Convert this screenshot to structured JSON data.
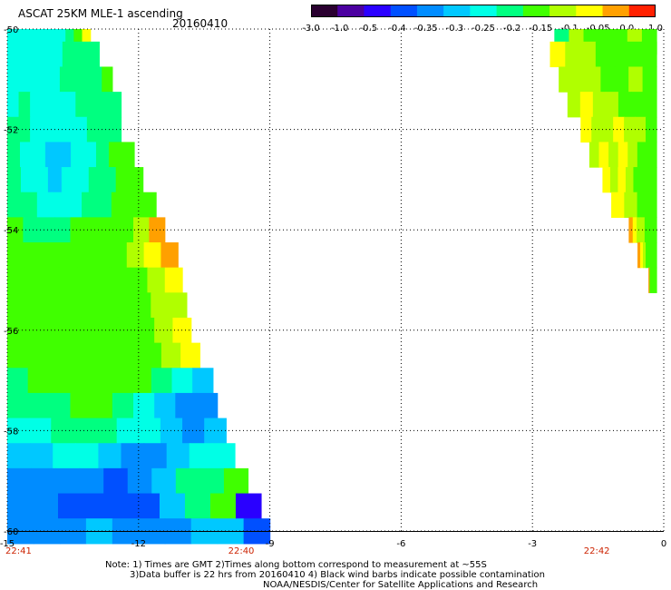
{
  "header": {
    "title": "ASCAT 25KM MLE-1 ascending",
    "date": "20160410"
  },
  "colorbar": {
    "labels": [
      "-3.0",
      "-1.0",
      "-0.5",
      "-0.4",
      "-0.35",
      "-0.3",
      "-0.25",
      "-0.2",
      "-0.15",
      "-0.1",
      "-0.05",
      "0.0",
      "1.0"
    ],
    "colors": [
      "#2a0030",
      "#4b00a0",
      "#2a00ff",
      "#0050ff",
      "#008cff",
      "#00c8ff",
      "#00ffe6",
      "#00ff80",
      "#40ff00",
      "#b0ff00",
      "#ffff00",
      "#ffa000",
      "#ff2000"
    ]
  },
  "axes": {
    "x_ticks": [
      "-15",
      "-12",
      "-9",
      "-6",
      "-3",
      "0"
    ],
    "y_ticks": [
      "-50",
      "-52",
      "-54",
      "-56",
      "-58",
      "-60"
    ],
    "times": [
      "22:41",
      "22:40",
      "22:42"
    ]
  },
  "notes": {
    "line1": "Note: 1) Times are GMT 2)Times along bottom correspond to measurement at ~55S",
    "line2": "3)Data buffer is 22 hrs from 20160410 4) Black wind barbs indicate possible contamination",
    "line3": "NOAA/NESDIS/Center for Satellite Applications and Research"
  },
  "chart_data": {
    "type": "heatmap",
    "title": "ASCAT 25KM MLE-1 ascending",
    "subtitle": "20160410",
    "xlim": [
      -15,
      0
    ],
    "ylim": [
      -60,
      -50
    ],
    "x_ticks": [
      -15,
      -12,
      -9,
      -6,
      -3,
      0
    ],
    "y_ticks": [
      -50,
      -52,
      -54,
      -56,
      -58,
      -60
    ],
    "grid": true,
    "colorbar_levels": [
      -3.0,
      -1.0,
      -0.5,
      -0.4,
      -0.35,
      -0.3,
      -0.25,
      -0.2,
      -0.15,
      -0.1,
      -0.05,
      0.0,
      1.0
    ],
    "swaths": [
      {
        "name": "left",
        "lat_rows": [
          -50.0,
          -50.5,
          -51.0,
          -51.5,
          -52.0,
          -52.5,
          -53.0,
          -53.5,
          -54.0,
          -54.5,
          -55.0,
          -55.5,
          -56.0,
          -56.5,
          -57.0,
          -57.5,
          -58.0,
          -58.5,
          -59.0,
          -59.5,
          -60.0
        ],
        "east_edge_lon": [
          -13.1,
          -12.9,
          -12.6,
          -12.4,
          -12.4,
          -12.1,
          -11.9,
          -11.6,
          -11.4,
          -11.1,
          -11.0,
          -10.9,
          -10.8,
          -10.6,
          -10.3,
          -10.2,
          -10.0,
          -9.8,
          -9.5,
          -9.2,
          -9.0
        ],
        "values": [
          [
            -0.25,
            -0.25,
            -0.25,
            -0.25,
            -0.25,
            -0.25,
            -0.25,
            -0.2,
            -0.15,
            -0.05
          ],
          [
            -0.25,
            -0.25,
            -0.25,
            -0.25,
            -0.25,
            -0.25,
            -0.2,
            -0.2,
            -0.2,
            -0.2
          ],
          [
            -0.25,
            -0.25,
            -0.25,
            -0.25,
            -0.25,
            -0.2,
            -0.2,
            -0.2,
            -0.2,
            -0.15
          ],
          [
            -0.25,
            -0.2,
            -0.25,
            -0.25,
            -0.25,
            -0.25,
            -0.2,
            -0.2,
            -0.2,
            -0.2
          ],
          [
            -0.2,
            -0.2,
            -0.25,
            -0.25,
            -0.25,
            -0.25,
            -0.25,
            -0.2,
            -0.2,
            -0.2
          ],
          [
            -0.2,
            -0.25,
            -0.25,
            -0.3,
            -0.3,
            -0.25,
            -0.25,
            -0.2,
            -0.15,
            -0.15
          ],
          [
            -0.2,
            -0.25,
            -0.25,
            -0.3,
            -0.25,
            -0.25,
            -0.2,
            -0.2,
            -0.15,
            -0.15
          ],
          [
            -0.2,
            -0.2,
            -0.25,
            -0.25,
            -0.25,
            -0.2,
            -0.2,
            -0.15,
            -0.15,
            -0.15
          ],
          [
            -0.15,
            -0.2,
            -0.2,
            -0.2,
            -0.15,
            -0.15,
            -0.15,
            -0.15,
            -0.1,
            0.0
          ],
          [
            -0.15,
            -0.15,
            -0.15,
            -0.15,
            -0.15,
            -0.15,
            -0.15,
            -0.1,
            -0.05,
            0.0
          ],
          [
            -0.15,
            -0.15,
            -0.15,
            -0.15,
            -0.15,
            -0.15,
            -0.15,
            -0.15,
            -0.1,
            -0.05
          ],
          [
            -0.15,
            -0.15,
            -0.15,
            -0.15,
            -0.15,
            -0.15,
            -0.15,
            -0.15,
            -0.1,
            -0.1
          ],
          [
            -0.15,
            -0.15,
            -0.15,
            -0.15,
            -0.15,
            -0.15,
            -0.15,
            -0.15,
            -0.1,
            -0.05
          ],
          [
            -0.15,
            -0.15,
            -0.15,
            -0.15,
            -0.15,
            -0.15,
            -0.15,
            -0.15,
            -0.1,
            -0.05
          ],
          [
            -0.2,
            -0.15,
            -0.15,
            -0.15,
            -0.15,
            -0.15,
            -0.15,
            -0.2,
            -0.25,
            -0.3
          ],
          [
            -0.2,
            -0.2,
            -0.2,
            -0.15,
            -0.15,
            -0.2,
            -0.25,
            -0.3,
            -0.35,
            -0.35
          ],
          [
            -0.25,
            -0.25,
            -0.2,
            -0.2,
            -0.2,
            -0.25,
            -0.25,
            -0.3,
            -0.35,
            -0.3
          ],
          [
            -0.3,
            -0.3,
            -0.25,
            -0.25,
            -0.3,
            -0.35,
            -0.35,
            -0.3,
            -0.25,
            -0.25
          ],
          [
            -0.35,
            -0.35,
            -0.35,
            -0.35,
            -0.4,
            -0.35,
            -0.3,
            -0.2,
            -0.2,
            -0.15
          ],
          [
            -0.35,
            -0.35,
            -0.4,
            -0.4,
            -0.4,
            -0.4,
            -0.3,
            -0.2,
            -0.15,
            -0.5
          ],
          [
            -0.35,
            -0.35,
            -0.35,
            -0.3,
            -0.35,
            -0.35,
            -0.35,
            -0.3,
            -0.3,
            -0.4
          ]
        ]
      },
      {
        "name": "right",
        "lat_rows": [
          -50.0,
          -50.5,
          -51.0,
          -51.5,
          -52.0,
          -52.5,
          -53.0,
          -53.5,
          -54.0,
          -54.5,
          -55.0
        ],
        "west_edge_lon": [
          -2.5,
          -2.6,
          -2.4,
          -2.2,
          -1.9,
          -1.7,
          -1.4,
          -1.2,
          -0.8,
          -0.6,
          -0.35
        ],
        "values": [
          [
            -0.2,
            -0.1,
            -0.15,
            -0.15,
            -0.15,
            -0.1,
            -0.15
          ],
          [
            -0.05,
            -0.1,
            -0.1,
            -0.15,
            -0.15,
            -0.15,
            -0.15
          ],
          [
            -0.1,
            -0.1,
            -0.1,
            -0.15,
            -0.15,
            -0.1,
            -0.15
          ],
          [
            -0.1,
            -0.05,
            -0.1,
            -0.1,
            -0.15,
            -0.15,
            -0.15
          ],
          [
            -0.05,
            -0.1,
            -0.1,
            -0.05,
            -0.1,
            -0.1,
            -0.15
          ],
          [
            -0.1,
            -0.05,
            -0.1,
            -0.05,
            -0.1,
            -0.15,
            -0.15
          ],
          [
            -0.05,
            -0.1,
            -0.05,
            -0.1,
            -0.15,
            -0.15,
            -0.15
          ],
          [
            -0.05,
            -0.05,
            -0.1,
            -0.1,
            -0.15,
            -0.15,
            -0.15
          ],
          [
            0.0,
            -0.05,
            -0.1,
            -0.1,
            -0.15,
            -0.15,
            -0.15
          ],
          [
            0.0,
            -0.05,
            -0.1,
            -0.15,
            -0.15,
            -0.15,
            -0.15
          ],
          [
            0.0,
            -0.15,
            -0.15,
            -0.15,
            -0.15,
            -0.15,
            -0.15
          ]
        ]
      }
    ]
  }
}
